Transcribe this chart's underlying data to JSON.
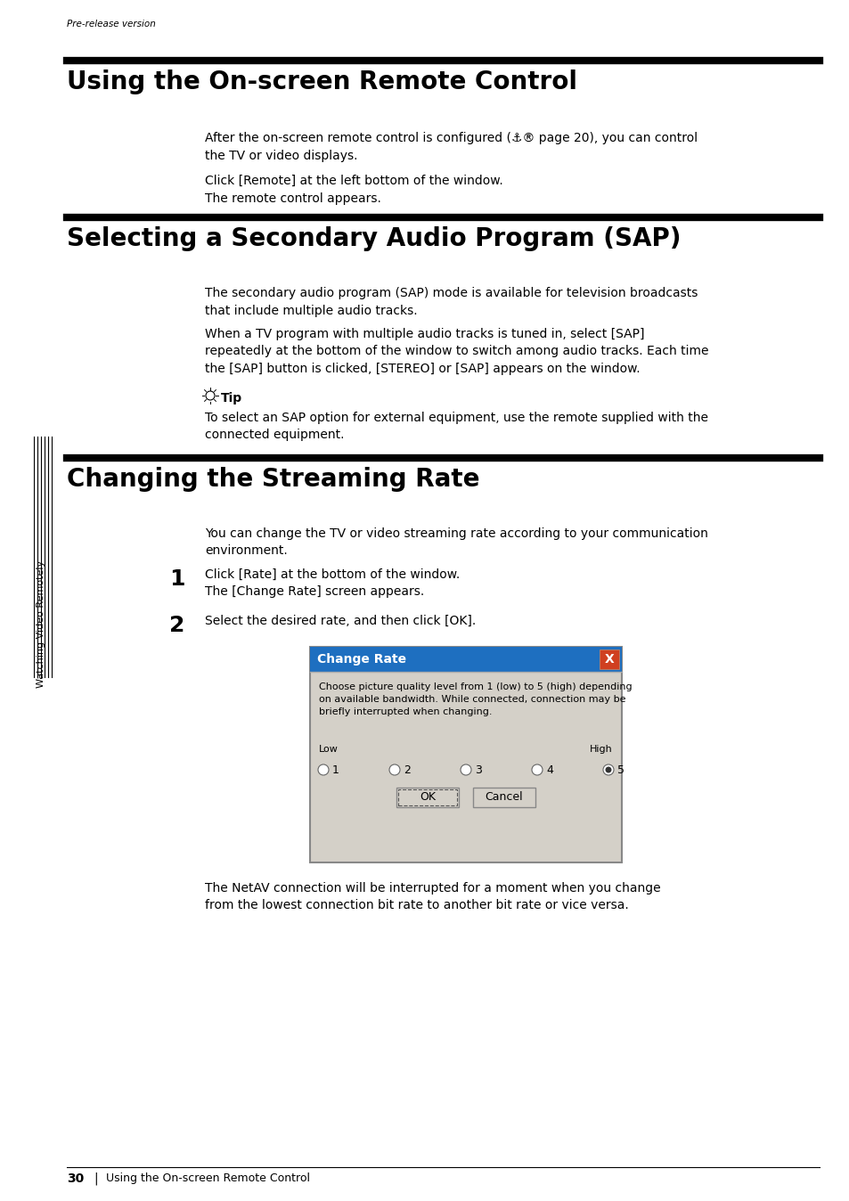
{
  "bg_color": "#ffffff",
  "pre_release_text": "Pre-release version",
  "section1_title": "Using the On-screen Remote Control",
  "section1_body1": "After the on-screen remote control is configured (⚓® page 20), you can control\nthe TV or video displays.",
  "section1_body2": "Click [Remote] at the left bottom of the window.\nThe remote control appears.",
  "section2_title": "Selecting a Secondary Audio Program (SAP)",
  "section2_body1": "The secondary audio program (SAP) mode is available for television broadcasts\nthat include multiple audio tracks.",
  "section2_body2": "When a TV program with multiple audio tracks is tuned in, select [SAP]\nrepeatedly at the bottom of the window to switch among audio tracks. Each time\nthe [SAP] button is clicked, [STEREO] or [SAP] appears on the window.",
  "tip_label": "Tip",
  "tip_body": "To select an SAP option for external equipment, use the remote supplied with the\nconnected equipment.",
  "section3_title": "Changing the Streaming Rate",
  "section3_body1": "You can change the TV or video streaming rate according to your communication\nenvironment.",
  "step1_num": "1",
  "step1_text": "Click [Rate] at the bottom of the window.\nThe [Change Rate] screen appears.",
  "step2_num": "2",
  "step2_text": "Select the desired rate, and then click [OK].",
  "dialog_title": "Change Rate",
  "dialog_body": "Choose picture quality level from 1 (low) to 5 (high) depending\non available bandwidth. While connected, connection may be\nbriefly interrupted when changing.",
  "dialog_low": "Low",
  "dialog_high": "High",
  "dialog_options": [
    "1",
    "2",
    "3",
    "4",
    "5"
  ],
  "dialog_ok": "OK",
  "dialog_cancel": "Cancel",
  "after_dialog_text": "The NetAV connection will be interrupted for a moment when you change\nfrom the lowest connection bit rate to another bit rate or vice versa.",
  "footer_page": "30",
  "footer_text": "Using the On-screen Remote Control",
  "sidebar_text": "Watching Video Remotely",
  "title_bar_color": "#1e6fc0",
  "dialog_bg_color": "#d4d0c8",
  "dialog_title_text_color": "#ffffff",
  "dialog_x_bg": "#d04020",
  "rule_color": "#000000",
  "rule_lw": 5
}
